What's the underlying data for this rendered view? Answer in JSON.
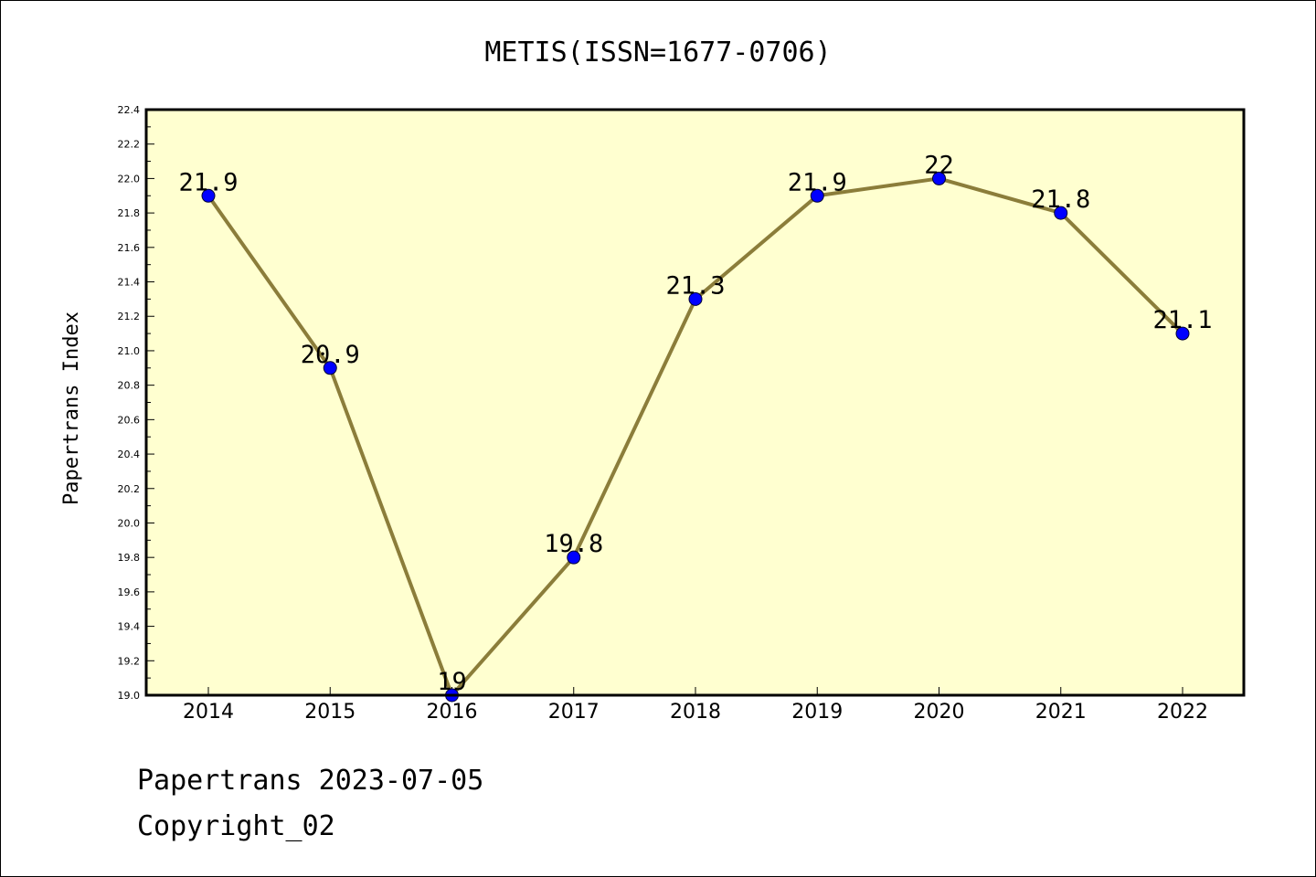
{
  "chart_data": {
    "type": "line",
    "title": "METIS(ISSN=1677-0706)",
    "xlabel": "",
    "ylabel": "Papertrans Index",
    "categories": [
      "2014",
      "2015",
      "2016",
      "2017",
      "2018",
      "2019",
      "2020",
      "2021",
      "2022"
    ],
    "series": [
      {
        "values": [
          21.9,
          20.9,
          19,
          19.8,
          21.3,
          21.9,
          22,
          21.8,
          21.1
        ]
      }
    ],
    "data_labels": [
      "21.9",
      "20.9",
      "19",
      "19.8",
      "21.3",
      "21.9",
      "22",
      "21.8",
      "21.1"
    ],
    "ylim": [
      19.0,
      22.4
    ],
    "yticks": [
      "19.0",
      "19.2",
      "19.4",
      "19.6",
      "19.8",
      "20.0",
      "20.2",
      "20.4",
      "20.6",
      "20.8",
      "21.0",
      "21.2",
      "21.4",
      "21.6",
      "21.8",
      "22.0",
      "22.2",
      "22.4"
    ],
    "grid": false,
    "legend": "none",
    "colors": {
      "plot_background": "#ffffd0",
      "line": "#8b7d3a",
      "marker": "#0000ff",
      "axis": "#000000"
    }
  },
  "footer": {
    "line1": "Papertrans 2023-07-05",
    "line2": "Copyright_02"
  }
}
